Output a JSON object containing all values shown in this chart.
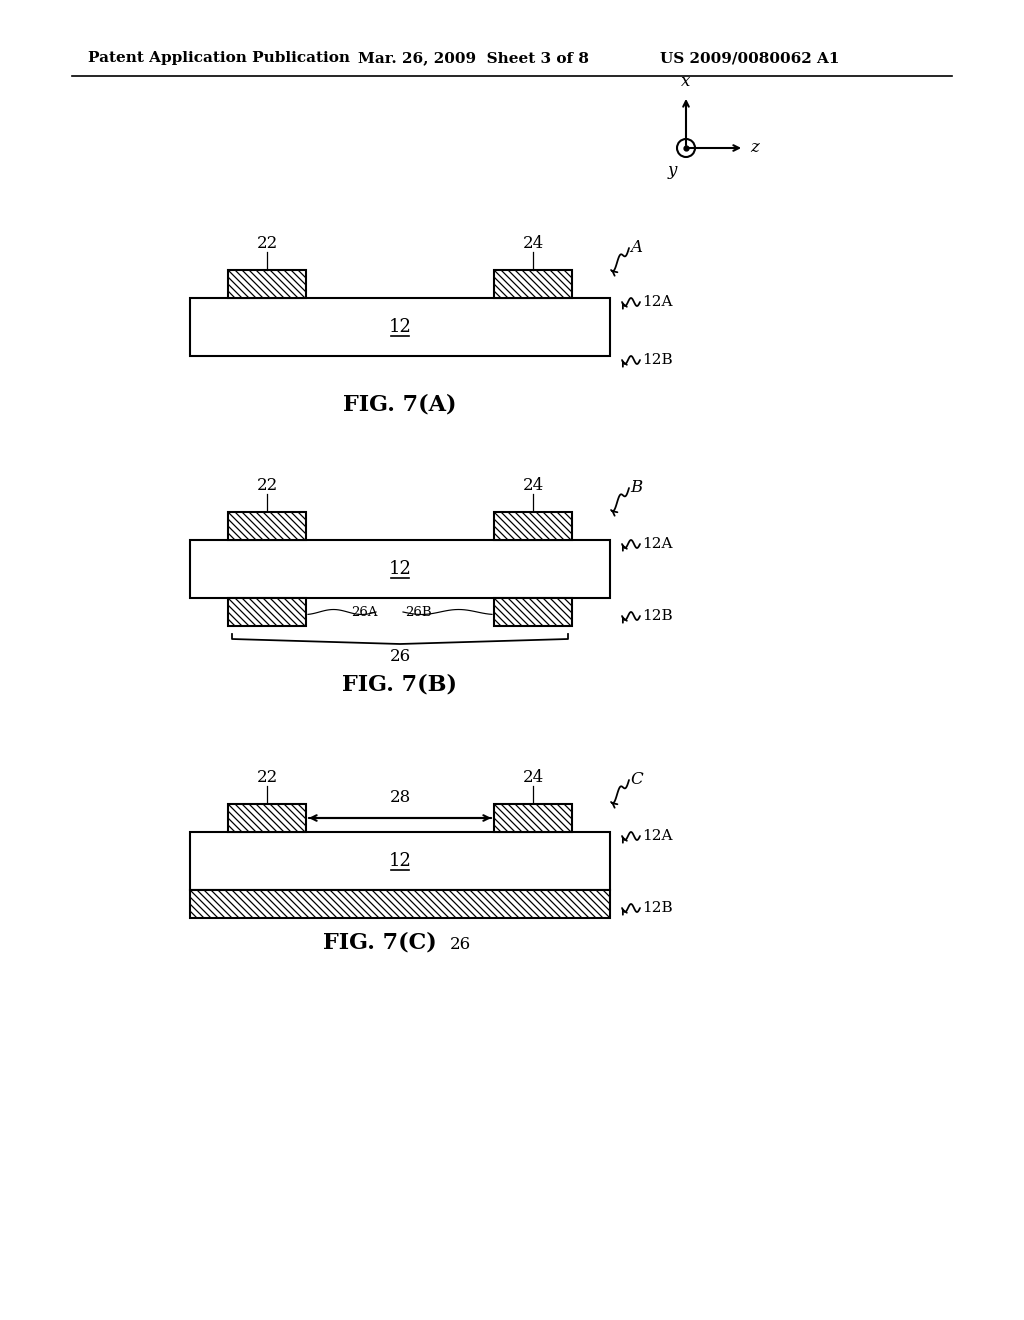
{
  "bg_color": "#ffffff",
  "line_color": "#000000",
  "header_left": "Patent Application Publication",
  "header_mid": "Mar. 26, 2009  Sheet 3 of 8",
  "header_right": "US 2009/0080062 A1",
  "fig_A_label": "FIG. 7(A)",
  "fig_B_label": "FIG. 7(B)",
  "fig_C_label": "FIG. 7(C)",
  "substrate_label": "12",
  "top_surface_label": "12A",
  "bot_surface_label": "12B",
  "elec_top_left_label": "22",
  "elec_top_right_label": "24",
  "elec_bot_label_26": "26",
  "elec_bot_label_26A": "26A",
  "elec_bot_label_26B": "26B",
  "arrow_label_28": "28",
  "label_A": "A",
  "label_B": "B",
  "label_C": "C",
  "label_x": "x",
  "label_y": "y",
  "label_z": "z"
}
